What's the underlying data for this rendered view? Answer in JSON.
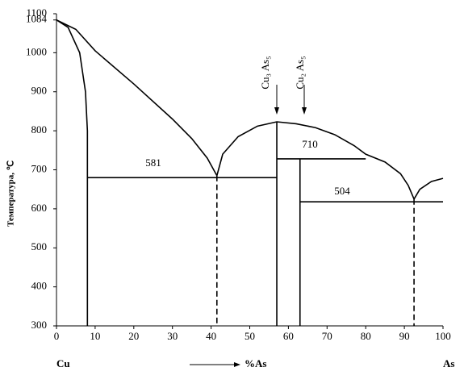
{
  "chart_data": {
    "type": "line",
    "ylabel": "Температура, ℃",
    "xlabel": "%As",
    "x_left_label": "Cu",
    "x_right_label": "As",
    "xlim": [
      0,
      100
    ],
    "xticks": [
      0,
      10,
      20,
      30,
      40,
      50,
      60,
      70,
      80,
      90,
      100
    ],
    "ylim": [
      300,
      1100
    ],
    "yticks": [
      300,
      400,
      500,
      600,
      700,
      800,
      900,
      1000,
      1084,
      1100
    ],
    "grid": false,
    "series": [
      {
        "color": "#000000",
        "dash": false,
        "x": [
          0,
          5,
          10,
          20,
          30,
          35,
          39,
          41.5
        ],
        "values": [
          1084,
          1060,
          1005,
          920,
          830,
          780,
          730,
          685
        ]
      },
      {
        "color": "#000000",
        "dash": false,
        "x": [
          0,
          3,
          6,
          7.5,
          8,
          8,
          8
        ],
        "values": [
          1084,
          1065,
          1000,
          900,
          800,
          680,
          300
        ]
      },
      {
        "color": "#000000",
        "dash": false,
        "x": [
          41.5,
          43,
          47,
          52,
          57,
          62,
          67,
          72,
          77,
          80,
          85,
          89,
          91,
          92.5
        ],
        "values": [
          685,
          740,
          785,
          812,
          823,
          818,
          808,
          790,
          762,
          740,
          720,
          690,
          660,
          625
        ]
      },
      {
        "color": "#000000",
        "dash": false,
        "x": [
          92.5,
          94,
          97,
          100
        ],
        "values": [
          625,
          650,
          670,
          678
        ]
      },
      {
        "color": "#000000",
        "dash": false,
        "x": [
          8,
          57
        ],
        "values": [
          680,
          680
        ]
      },
      {
        "color": "#000000",
        "dash": false,
        "x": [
          57,
          80
        ],
        "values": [
          728,
          728
        ]
      },
      {
        "color": "#000000",
        "dash": false,
        "x": [
          63,
          100
        ],
        "values": [
          618,
          618
        ]
      },
      {
        "color": "#000000",
        "dash": false,
        "x": [
          57,
          57
        ],
        "values": [
          823,
          300
        ]
      },
      {
        "color": "#000000",
        "dash": false,
        "x": [
          63,
          63
        ],
        "values": [
          728,
          300
        ]
      },
      {
        "color": "#000000",
        "dash": true,
        "x": [
          41.5,
          41.5
        ],
        "values": [
          685,
          300
        ]
      },
      {
        "color": "#000000",
        "dash": true,
        "x": [
          92.5,
          92.5
        ],
        "values": [
          625,
          300
        ]
      }
    ],
    "annotations": [
      "581",
      "710",
      "504",
      "Cu₃ As₅",
      "Cu₂ As₅"
    ]
  }
}
